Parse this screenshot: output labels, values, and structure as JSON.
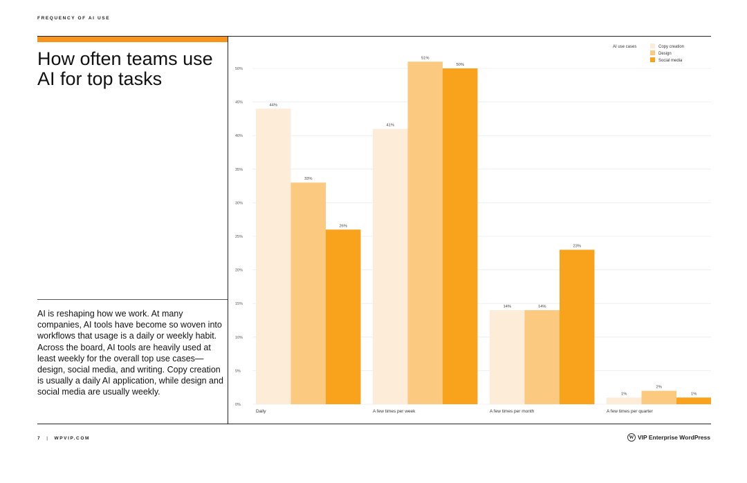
{
  "page": {
    "header": "FREQUENCY OF AI USE",
    "title": "How often teams use AI for top tasks",
    "body": "AI is reshaping how we work. At many companies, AI tools have become so woven into workflows that usage is a daily or weekly habit. Across the board, AI tools are heavily used at least weekly for the overall top use cases—design, social media, and writing. Copy creation is usually a daily AI application, while design and social media are usually weekly.",
    "footer_page": "7",
    "footer_site": "WPVIP.COM",
    "brand_name": "VIP  Enterprise WordPress",
    "brand_icon": "wordpress-logo-icon",
    "accent_color": "#f7941d"
  },
  "chart_data": {
    "type": "bar",
    "categories": [
      "Daily",
      "A few times per week",
      "A few times per month",
      "A few times per quarter"
    ],
    "legend_title": "AI use cases",
    "legend_position": "top-right",
    "series": [
      {
        "name": "Copy creation",
        "values": [
          44,
          41,
          14,
          1
        ],
        "labels": [
          "44%",
          "41%",
          "14%",
          "1%"
        ],
        "color": "#fdecd8"
      },
      {
        "name": "Design",
        "values": [
          33,
          51,
          14,
          2
        ],
        "labels": [
          "33%",
          "51%",
          "14%",
          "2%"
        ],
        "color": "#fbc97f"
      },
      {
        "name": "Social media",
        "values": [
          26,
          50,
          23,
          1
        ],
        "labels": [
          "26%",
          "50%",
          "23%",
          "1%"
        ],
        "color": "#f9a21c"
      }
    ],
    "y_ticks": [
      0,
      5,
      10,
      15,
      20,
      25,
      30,
      35,
      40,
      45,
      50
    ],
    "y_tick_labels": [
      "0%",
      "5%",
      "10%",
      "15%",
      "20%",
      "25%",
      "30%",
      "35%",
      "40%",
      "45%",
      "50%"
    ],
    "ylim": [
      0,
      51
    ],
    "grid": true
  }
}
